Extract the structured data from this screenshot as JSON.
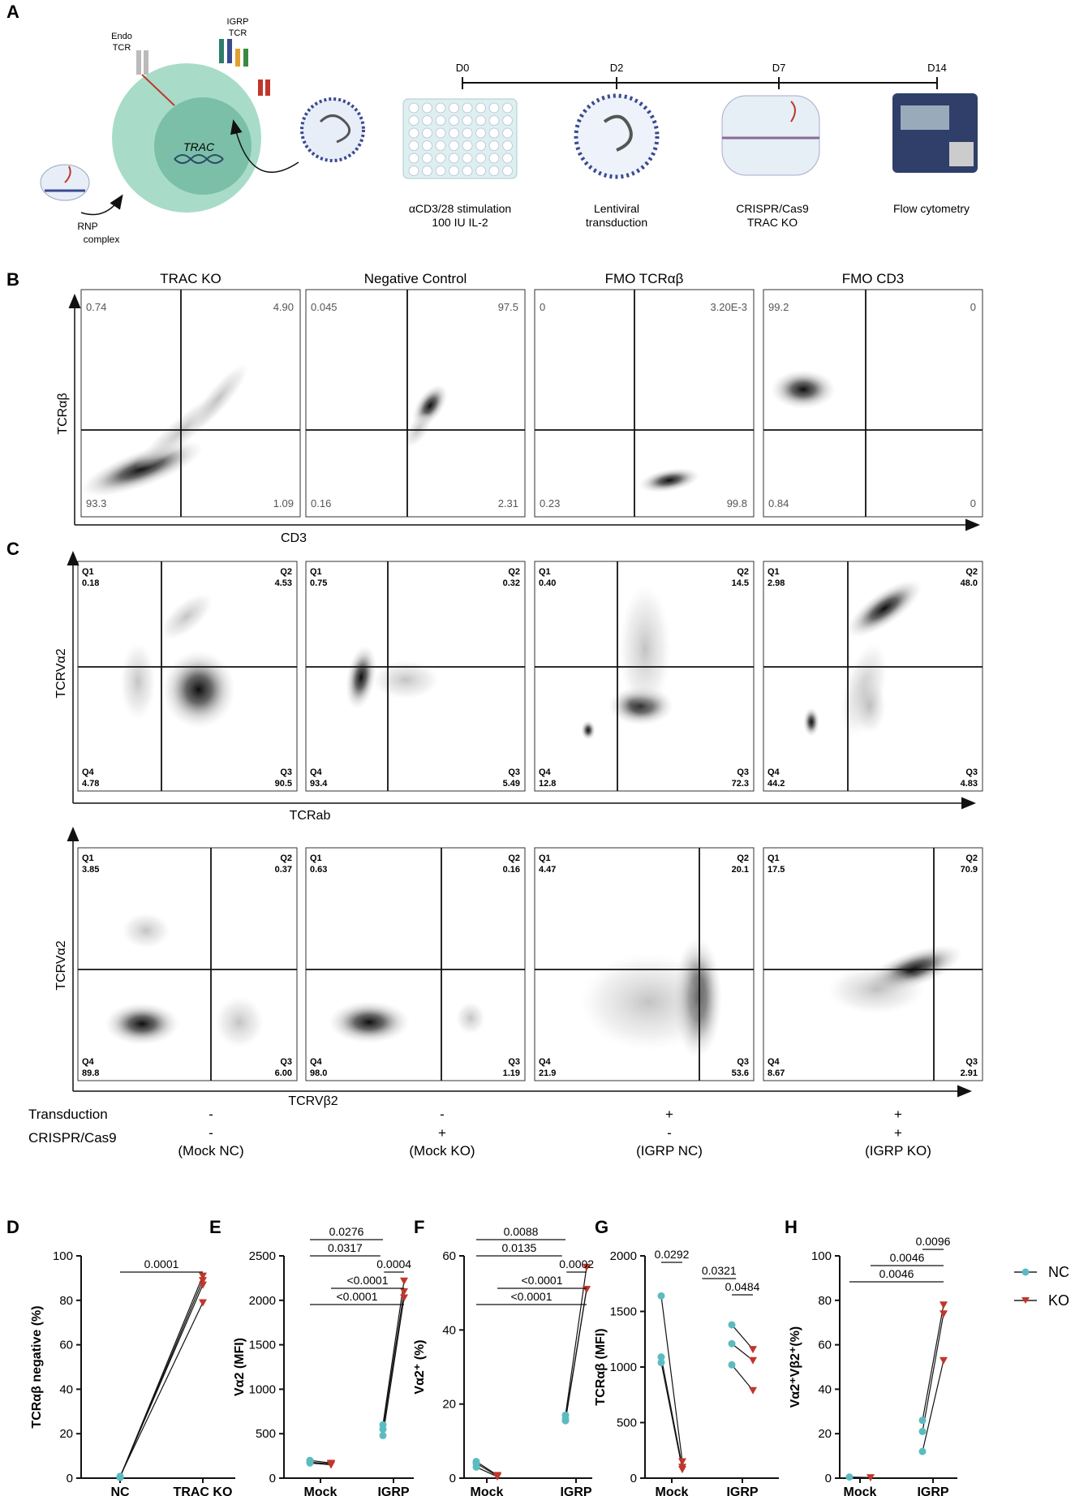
{
  "panel_letters": {
    "a": "A",
    "b": "B",
    "c": "C",
    "d": "D",
    "e": "E",
    "f": "F",
    "g": "G",
    "h": "H"
  },
  "panelA": {
    "cell_labels": {
      "endo_tcr": [
        "Endo",
        "TCR"
      ],
      "igrp_tcr": [
        "IGRP",
        "TCR"
      ],
      "trac": "TRAC",
      "rnp": [
        "RNP",
        "complex"
      ]
    },
    "timeline_days": [
      "D0",
      "D2",
      "D7",
      "D14"
    ],
    "steps": [
      {
        "lines": [
          "αCD3/28 stimulation",
          "100 IU IL-2"
        ]
      },
      {
        "lines": [
          "Lentiviral",
          "transduction"
        ]
      },
      {
        "lines": [
          "CRISPR/Cas9",
          "TRAC KO"
        ]
      },
      {
        "lines": [
          "Flow cytometry"
        ]
      }
    ],
    "colors": {
      "cell": "#a8dcc8",
      "nucleus": "#6fb8a0",
      "virus": "#3a4a90",
      "plate": "#dfeff0"
    }
  },
  "panelB": {
    "titles": [
      "TRAC KO",
      "Negative Control",
      "FMO TCRαβ",
      "FMO CD3"
    ],
    "y_axis": "TCRαβ",
    "x_axis": "CD3",
    "plots": [
      {
        "ul": "0.74",
        "ur": "4.90",
        "ll": "93.3",
        "lr": "1.09"
      },
      {
        "ul": "0.045",
        "ur": "97.5",
        "ll": "0.16",
        "lr": "2.31"
      },
      {
        "ul": "0",
        "ur": "3.20E-3",
        "ll": "0.23",
        "lr": "99.8"
      },
      {
        "ul": "99.2",
        "ur": "0",
        "ll": "0.84",
        "lr": "0"
      }
    ]
  },
  "panelC": {
    "quadrant_names": [
      "Q1",
      "Q2",
      "Q3",
      "Q4"
    ],
    "row1": {
      "y_axis": "TCRVα2",
      "x_axis": "TCRab",
      "plots": [
        {
          "q1": "0.18",
          "q2": "4.53",
          "q3": "90.5",
          "q4": "4.78"
        },
        {
          "q1": "0.75",
          "q2": "0.32",
          "q3": "5.49",
          "q4": "93.4"
        },
        {
          "q1": "0.40",
          "q2": "14.5",
          "q3": "72.3",
          "q4": "12.8"
        },
        {
          "q1": "2.98",
          "q2": "48.0",
          "q3": "4.83",
          "q4": "44.2"
        }
      ]
    },
    "row2": {
      "y_axis": "TCRVα2",
      "x_axis": "TCRVβ2",
      "plots": [
        {
          "q1": "3.85",
          "q2": "0.37",
          "q3": "6.00",
          "q4": "89.8"
        },
        {
          "q1": "0.63",
          "q2": "0.16",
          "q3": "1.19",
          "q4": "98.0"
        },
        {
          "q1": "4.47",
          "q2": "20.1",
          "q3": "53.6",
          "q4": "21.9"
        },
        {
          "q1": "17.5",
          "q2": "70.9",
          "q3": "2.91",
          "q4": "8.67"
        }
      ]
    },
    "conditions": {
      "transduction_label": "Transduction",
      "crispr_label": "CRISPR/Cas9",
      "groups": [
        {
          "transduction": "-",
          "crispr": "-",
          "name": "(Mock NC)"
        },
        {
          "transduction": "-",
          "crispr": "+",
          "name": "(Mock KO)"
        },
        {
          "transduction": "+",
          "crispr": "-",
          "name": "(IGRP NC)"
        },
        {
          "transduction": "+",
          "crispr": "+",
          "name": "(IGRP KO)"
        }
      ]
    }
  },
  "legend": {
    "nc": "NC",
    "ko": "KO",
    "nc_color": "#5bbcc0",
    "ko_color": "#c0362c"
  },
  "chart_data": [
    {
      "panel": "D",
      "type": "scatter",
      "ylabel": "TCRαβ negative (%)",
      "categories": [
        "NC",
        "TRAC KO"
      ],
      "ylim": [
        0,
        100
      ],
      "yticks": [
        "0",
        "20",
        "40",
        "60",
        "80",
        "100"
      ],
      "pairs": [
        [
          0.3,
          89
        ],
        [
          0.5,
          91
        ],
        [
          0.6,
          87
        ],
        [
          0.8,
          79
        ]
      ],
      "comparisons": [
        {
          "text": "0.0001",
          "from": 0,
          "to": 1
        }
      ]
    },
    {
      "panel": "E",
      "type": "scatter",
      "ylabel": "Vα2 (MFI)",
      "categories": [
        "Mock",
        "IGRP"
      ],
      "ylim": [
        0,
        2500
      ],
      "yticks": [
        "0",
        "500",
        "1000",
        "1500",
        "2000",
        "2500"
      ],
      "groups": [
        {
          "nc": [
            200,
            180,
            170
          ],
          "ko": [
            170,
            160,
            150
          ]
        },
        {
          "nc": [
            600,
            550,
            480
          ],
          "ko": [
            2220,
            2100,
            2030
          ]
        }
      ],
      "comparisons": [
        {
          "text": "0.0276",
          "from": 0,
          "to": 2
        },
        {
          "text": "0.0317",
          "from": 0,
          "to": 1.95
        },
        {
          "text": "0.0004",
          "from": 2.05,
          "to": 3
        },
        {
          "text": "<0.0001",
          "from": 1,
          "to": 3
        },
        {
          "text": "<0.0001",
          "from": 0,
          "to": 3
        }
      ]
    },
    {
      "panel": "F",
      "type": "scatter",
      "ylabel": "Vα2⁺ (%)",
      "categories": [
        "Mock",
        "IGRP"
      ],
      "ylim": [
        0,
        60
      ],
      "yticks": [
        "0",
        "20",
        "40",
        "60"
      ],
      "groups": [
        {
          "nc": [
            4.5,
            4,
            3
          ],
          "ko": [
            0.8,
            0.6,
            0.4
          ]
        },
        {
          "nc": [
            17,
            16,
            15.5
          ],
          "ko": [
            57,
            51,
            51
          ]
        }
      ],
      "comparisons": [
        {
          "text": "0.0088",
          "from": 0,
          "to": 2
        },
        {
          "text": "0.0135",
          "from": 0,
          "to": 1.95
        },
        {
          "text": "0.0002",
          "from": 2.05,
          "to": 3
        },
        {
          "text": "<0.0001",
          "from": 1,
          "to": 3
        },
        {
          "text": "<0.0001",
          "from": 0,
          "to": 3
        }
      ]
    },
    {
      "panel": "G",
      "type": "scatter",
      "ylabel": "TCRαβ (MFI)",
      "categories": [
        "Mock",
        "IGRP"
      ],
      "ylim": [
        0,
        2000
      ],
      "yticks": [
        "0",
        "500",
        "1000",
        "1500",
        "2000"
      ],
      "groups": [
        {
          "nc": [
            1640,
            1090,
            1040
          ],
          "ko": [
            150,
            100,
            80
          ]
        },
        {
          "nc": [
            1380,
            1210,
            1020
          ],
          "ko": [
            1160,
            1060,
            790
          ]
        }
      ],
      "comparisons": [
        {
          "text": "0.0292",
          "from": 0,
          "to": 1
        },
        {
          "text": "0.0321",
          "from": 1.4,
          "to": 2.2
        },
        {
          "text": "0.0484",
          "from": 2,
          "to": 3
        }
      ]
    },
    {
      "panel": "H",
      "type": "scatter",
      "ylabel": "Vα2⁺Vβ2⁺(%)",
      "categories": [
        "Mock",
        "IGRP"
      ],
      "ylim": [
        0,
        100
      ],
      "yticks": [
        "0",
        "20",
        "40",
        "60",
        "80",
        "100"
      ],
      "groups": [
        {
          "nc": [
            0.5
          ],
          "ko": [
            0.3
          ]
        },
        {
          "nc": [
            26,
            21,
            12
          ],
          "ko": [
            78,
            74,
            53
          ]
        }
      ],
      "comparisons": [
        {
          "text": "0.0096",
          "from": 2,
          "to": 3
        },
        {
          "text": "0.0046",
          "from": 1,
          "to": 3
        },
        {
          "text": "0.0046",
          "from": 0,
          "to": 3
        }
      ]
    }
  ]
}
